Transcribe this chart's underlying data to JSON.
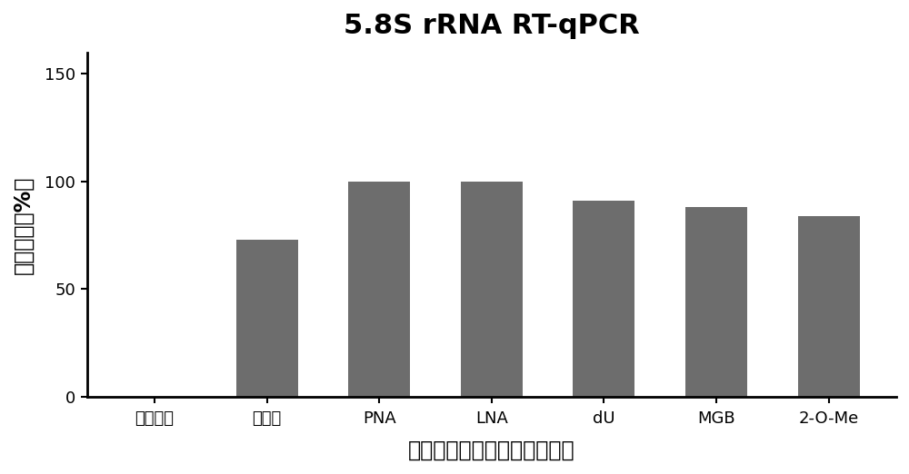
{
  "title": "5.8S rRNA RT-qPCR",
  "categories": [
    "不加探针",
    "未修饰",
    "PNA",
    "LNA",
    "dU",
    "MGB",
    "2-O-Me"
  ],
  "values": [
    0,
    73,
    100,
    100,
    91,
    88,
    84
  ],
  "bar_color": "#6d6d6d",
  "ylabel": "抑制效率（%）",
  "xlabel": "三元复合物封闭探针修饰类型",
  "ylim": [
    0,
    160
  ],
  "yticks": [
    0,
    50,
    100,
    150
  ],
  "title_fontsize": 22,
  "axis_label_fontsize": 17,
  "tick_fontsize": 13,
  "bar_width": 0.55,
  "background_color": "#ffffff"
}
